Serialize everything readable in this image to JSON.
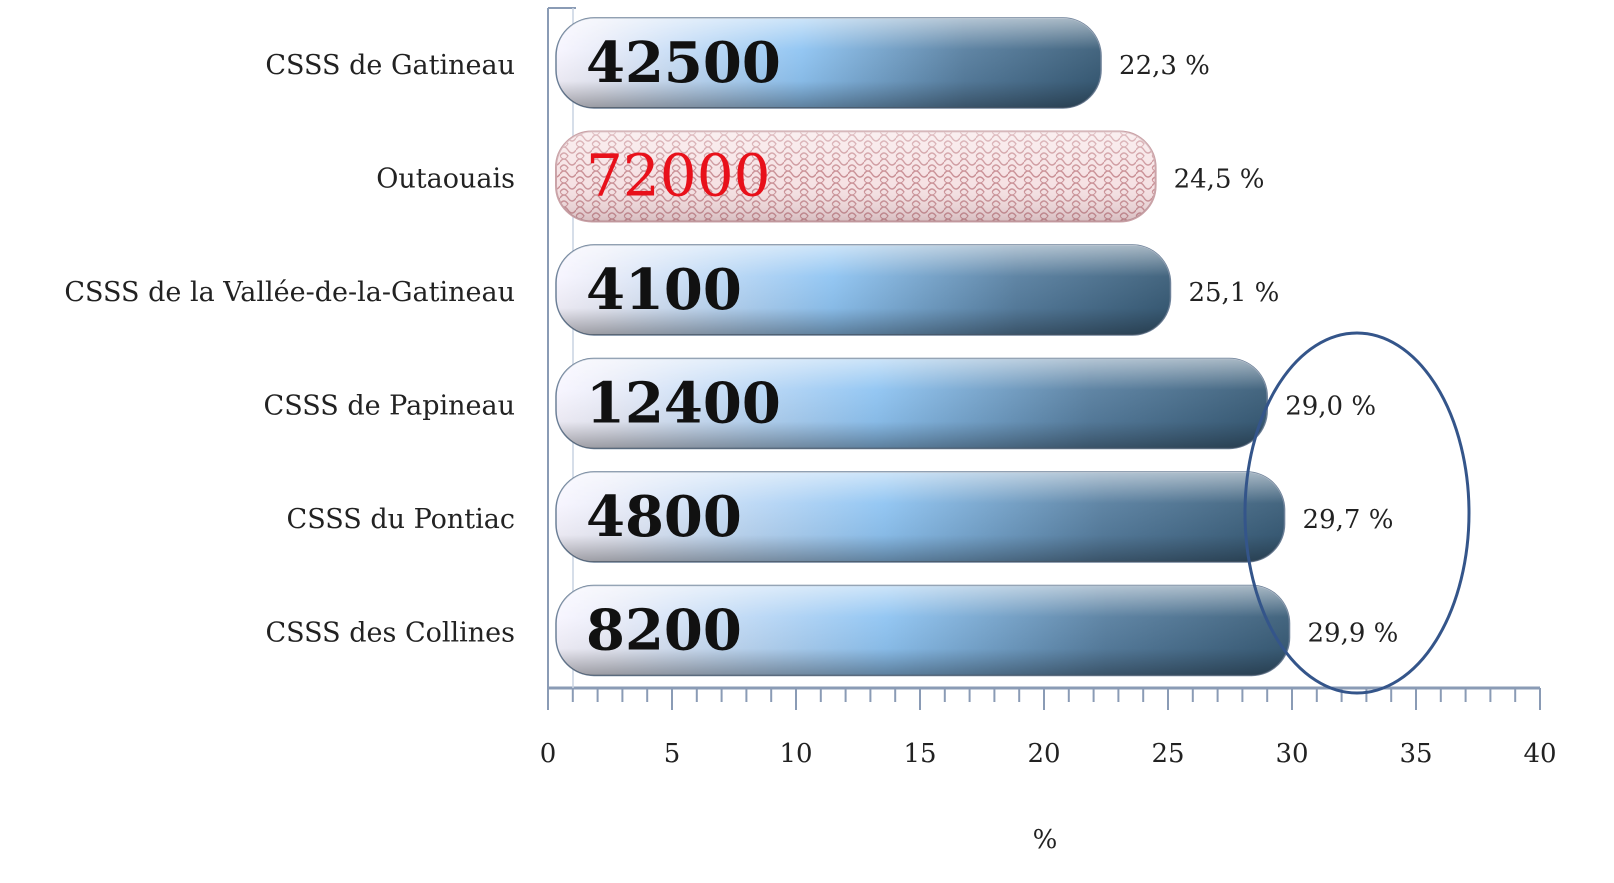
{
  "chart_data": {
    "type": "bar",
    "orientation": "horizontal",
    "categories": [
      "CSSS de Gatineau",
      "Outaouais",
      "CSSS de la Vallée-de-la-Gatineau",
      "CSSS de Papineau",
      "CSSS du Pontiac",
      "CSSS des Collines"
    ],
    "values": [
      22.3,
      24.5,
      25.1,
      29.0,
      29.7,
      29.9
    ],
    "value_labels": [
      "22,3 %",
      "24,5 %",
      "25,1 %",
      "29,0 %",
      "29,7 %",
      "29,9 %"
    ],
    "inner_labels": [
      "42500",
      "72000",
      "4100",
      "12400",
      "4800",
      "8200"
    ],
    "highlight_category": "Outaouais",
    "xlabel": "%",
    "ylabel": "",
    "xlim": [
      0,
      40
    ],
    "xticks": [
      "0",
      "5",
      "10",
      "15",
      "20",
      "25",
      "30",
      "35",
      "40"
    ],
    "grid": false,
    "colors": {
      "bar_light": "#f4f2ff",
      "bar_mid": "#8fc3f0",
      "bar_dark": "#3d5f7a",
      "highlight_fill": "#f3d9dc",
      "highlight_text": "#e8101a",
      "circle": "#34558a",
      "axis": "#8a9bb5"
    }
  }
}
